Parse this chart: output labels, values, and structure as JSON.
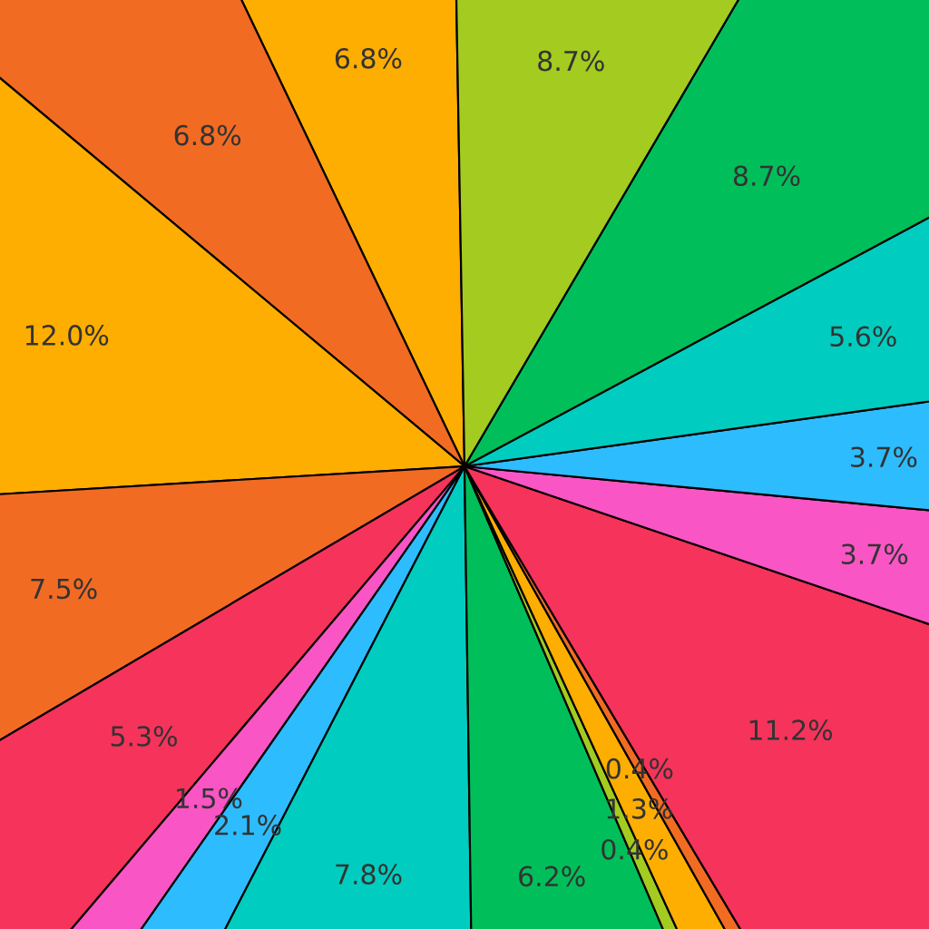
{
  "chart_data": {
    "type": "pie",
    "categories": [
      null,
      null,
      null,
      null,
      null,
      null,
      null,
      null,
      null,
      null,
      null,
      null,
      null,
      null,
      null,
      null,
      null,
      null
    ],
    "values": [
      6.8,
      6.8,
      12.0,
      7.5,
      5.3,
      1.5,
      2.1,
      7.8,
      6.2,
      0.4,
      1.3,
      0.4,
      11.2,
      3.7,
      3.7,
      5.6,
      8.7,
      8.7
    ],
    "value_labels": [
      "6.8%",
      "6.8%",
      "12.0%",
      "7.5%",
      "5.3%",
      "1.5%",
      "2.1%",
      "7.8%",
      "6.2%",
      "0.4%",
      "1.3%",
      "0.4%",
      "11.2%",
      "3.7%",
      "3.7%",
      "5.6%",
      "8.7%",
      "8.7%"
    ],
    "colors": [
      "#feae00",
      "#f26b23",
      "#feae00",
      "#f26b23",
      "#f5335b",
      "#f955c5",
      "#2dbdfe",
      "#00cdc0",
      "#00bf5b",
      "#a4cb1f",
      "#feae00",
      "#f26b23",
      "#f5335b",
      "#f955c5",
      "#2dbdfe",
      "#00cdc0",
      "#00bf5b",
      "#a4cb1f"
    ]
  }
}
